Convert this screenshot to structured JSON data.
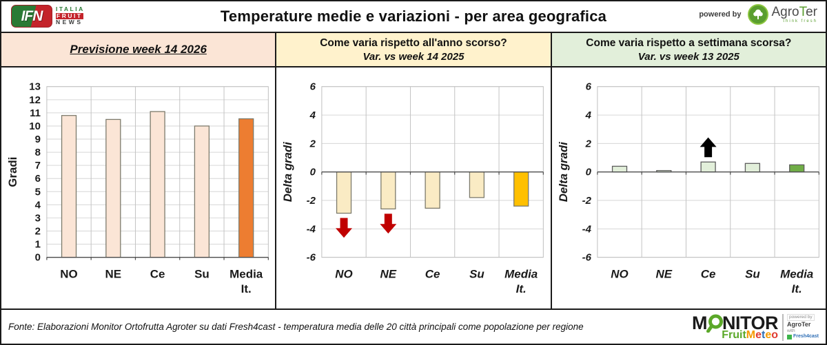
{
  "header": {
    "title": "Temperature medie e variazioni - per area geografica",
    "powered_by_label": "powered by",
    "ifn_logo": {
      "abbr": "IFN",
      "word1": "ITALIA",
      "word2": "FRUIT",
      "word3": "NEWS"
    },
    "agroter_logo": {
      "part1": "Agro",
      "part2": "T",
      "part3": "er",
      "tagline": "think fresh"
    }
  },
  "panels": [
    {
      "title": "Previsione week 14 2026",
      "subtitle": "",
      "bg_color": "#FBE5D6"
    },
    {
      "title": "Come varia rispetto all'anno scorso?",
      "subtitle": "Var. vs week 14 2025",
      "bg_color": "#FFF2CC"
    },
    {
      "title": "Come varia rispetto a settimana scorsa?",
      "subtitle": "Var. vs week 13 2025",
      "bg_color": "#E2EFDA"
    }
  ],
  "chart_data": [
    {
      "type": "bar",
      "title": "Previsione week 14 2026",
      "categories": [
        "NO",
        "NE",
        "Ce",
        "Su",
        "Media It."
      ],
      "values": [
        10.8,
        10.5,
        11.1,
        10.0,
        10.55
      ],
      "xlabel": "",
      "ylabel": "Gradi",
      "ylim": [
        0,
        13
      ],
      "ytick_step": 1,
      "grid": true,
      "legend": false,
      "italic_labels": false,
      "bar_fill": "#FBE5D6",
      "bar_stroke": "#7C7A6B",
      "highlight_last_fill": "#ED7D31",
      "annotations": []
    },
    {
      "type": "bar",
      "title": "Var. vs week 14 2025",
      "categories": [
        "NO",
        "NE",
        "Ce",
        "Su",
        "Media It."
      ],
      "values": [
        -2.9,
        -2.6,
        -2.55,
        -1.8,
        -2.4
      ],
      "xlabel": "",
      "ylabel": "Delta gradi",
      "ylim": [
        -6,
        6
      ],
      "ytick_step": 2,
      "grid": true,
      "legend": false,
      "italic_labels": true,
      "bar_fill": "#FAEBC4",
      "bar_stroke": "#7C7A6B",
      "highlight_last_fill": "#FFC000",
      "annotations": [
        {
          "category": "NO",
          "direction": "down",
          "color": "#C00000"
        },
        {
          "category": "NE",
          "direction": "down",
          "color": "#C00000"
        }
      ]
    },
    {
      "type": "bar",
      "title": "Var. vs week 13 2025",
      "categories": [
        "NO",
        "NE",
        "Ce",
        "Su",
        "Media It."
      ],
      "values": [
        0.4,
        0.1,
        0.7,
        0.6,
        0.5
      ],
      "xlabel": "",
      "ylabel": "Delta gradi",
      "ylim": [
        -6,
        6
      ],
      "ytick_step": 2,
      "grid": true,
      "legend": false,
      "italic_labels": true,
      "bar_fill": "#E2EFDA",
      "bar_stroke": "#5B5B5B",
      "highlight_last_fill": "#70AD47",
      "annotations": [
        {
          "category": "Ce",
          "direction": "up",
          "color": "#000000"
        }
      ]
    }
  ],
  "footer": {
    "source": "Fonte: Elaborazioni Monitor Ortofrutta Agroter su dati Fresh4cast - temperatura media delle 20 città principali come popolazione per regione",
    "monitor_logo": {
      "part1": "M",
      "part2": "NITOR",
      "fruit": "Fruit",
      "meteo_letters": [
        {
          "ch": "M",
          "color": "#F59B00"
        },
        {
          "ch": "e",
          "color": "#E03C31"
        },
        {
          "ch": "t",
          "color": "#2E6EB5"
        },
        {
          "ch": "e",
          "color": "#F59B00"
        },
        {
          "ch": "o",
          "color": "#E03C31"
        }
      ],
      "powered_by": "powered by",
      "agroter": "AgroTer",
      "with_label": "with",
      "fresh4cast": "Fresh4cast"
    }
  }
}
